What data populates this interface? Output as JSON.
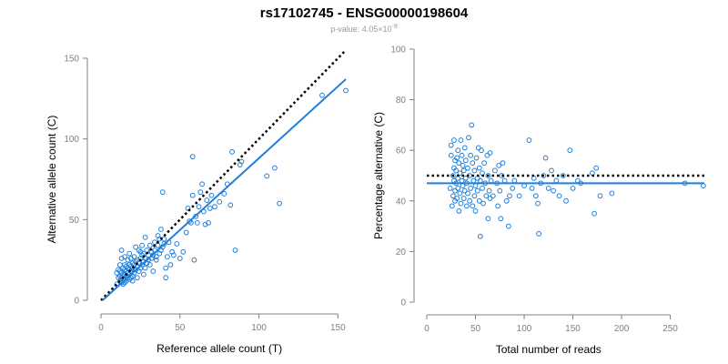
{
  "page": {
    "title": "rs17102745 - ENSG00000198604",
    "subtitle_prefix": "p-value: 4.05×10",
    "subtitle_exp": "-9"
  },
  "colors": {
    "points": "#1f7fdc",
    "fit": "#1f7fdc",
    "reference": "#000000",
    "axis": "#808080"
  },
  "chart_data": [
    {
      "type": "scatter",
      "title": "",
      "xlabel": "Reference allele count (T)",
      "ylabel": "Alternative allele count (C)",
      "xlim": [
        0,
        155
      ],
      "ylim": [
        0,
        150
      ],
      "xticks": [
        0,
        50,
        100,
        150
      ],
      "yticks": [
        0,
        50,
        100,
        150
      ],
      "grid": false,
      "reference_line": {
        "style": "dotted",
        "points": [
          [
            0,
            0
          ],
          [
            155,
            155
          ]
        ]
      },
      "fit_line": {
        "style": "solid",
        "points": [
          [
            1,
            0
          ],
          [
            155,
            137
          ]
        ]
      },
      "series": [
        {
          "points": [
            [
              10,
              10
            ],
            [
              10,
              17
            ],
            [
              11,
              14
            ],
            [
              11,
              19
            ],
            [
              12,
              12
            ],
            [
              12,
              15
            ],
            [
              12,
              18
            ],
            [
              12,
              22
            ],
            [
              13,
              11
            ],
            [
              13,
              14
            ],
            [
              13,
              17
            ],
            [
              13,
              26
            ],
            [
              13,
              31
            ],
            [
              14,
              10
            ],
            [
              14,
              13
            ],
            [
              14,
              16
            ],
            [
              14,
              20
            ],
            [
              15,
              11
            ],
            [
              15,
              13
            ],
            [
              15,
              16
            ],
            [
              15,
              19
            ],
            [
              15,
              22
            ],
            [
              15,
              27
            ],
            [
              16,
              12
            ],
            [
              16,
              15
            ],
            [
              16,
              18
            ],
            [
              16,
              21
            ],
            [
              17,
              14
            ],
            [
              17,
              17
            ],
            [
              17,
              20
            ],
            [
              17,
              25
            ],
            [
              18,
              13
            ],
            [
              18,
              16
            ],
            [
              18,
              19
            ],
            [
              18,
              22
            ],
            [
              18,
              29
            ],
            [
              19,
              14
            ],
            [
              19,
              18
            ],
            [
              19,
              21
            ],
            [
              19,
              26
            ],
            [
              20,
              12
            ],
            [
              20,
              15
            ],
            [
              20,
              20
            ],
            [
              20,
              23
            ],
            [
              21,
              17
            ],
            [
              21,
              22
            ],
            [
              21,
              27
            ],
            [
              22,
              19
            ],
            [
              22,
              24
            ],
            [
              22,
              33
            ],
            [
              23,
              14
            ],
            [
              23,
              21
            ],
            [
              23,
              25
            ],
            [
              24,
              18
            ],
            [
              24,
              23
            ],
            [
              24,
              31
            ],
            [
              25,
              20
            ],
            [
              25,
              26
            ],
            [
              25,
              30
            ],
            [
              26,
              22
            ],
            [
              26,
              28
            ],
            [
              26,
              34
            ],
            [
              27,
              16
            ],
            [
              27,
              24
            ],
            [
              27,
              29
            ],
            [
              28,
              20
            ],
            [
              28,
              26
            ],
            [
              28,
              39
            ],
            [
              29,
              23
            ],
            [
              29,
              31
            ],
            [
              30,
              25
            ],
            [
              30,
              28
            ],
            [
              31,
              22
            ],
            [
              31,
              34
            ],
            [
              32,
              26
            ],
            [
              32,
              30
            ],
            [
              33,
              18
            ],
            [
              33,
              28
            ],
            [
              34,
              31
            ],
            [
              34,
              36
            ],
            [
              35,
              27
            ],
            [
              35,
              25
            ],
            [
              36,
              34
            ],
            [
              36,
              40
            ],
            [
              37,
              29
            ],
            [
              37,
              38
            ],
            [
              38,
              31
            ],
            [
              38,
              44
            ],
            [
              39,
              33
            ],
            [
              39,
              67
            ],
            [
              40,
              35
            ],
            [
              40,
              38
            ],
            [
              41,
              14
            ],
            [
              41,
              20
            ],
            [
              42,
              27
            ],
            [
              43,
              36
            ],
            [
              44,
              22
            ],
            [
              45,
              30
            ],
            [
              46,
              28
            ],
            [
              48,
              35
            ],
            [
              50,
              26
            ],
            [
              52,
              30
            ],
            [
              54,
              42
            ],
            [
              55,
              57
            ],
            [
              56,
              49
            ],
            [
              57,
              48
            ],
            [
              58,
              65
            ],
            [
              58,
              89
            ],
            [
              59,
              25
            ],
            [
              60,
              52
            ],
            [
              61,
              48
            ],
            [
              62,
              58
            ],
            [
              63,
              67
            ],
            [
              64,
              72
            ],
            [
              65,
              55
            ],
            [
              66,
              47
            ],
            [
              67,
              62
            ],
            [
              68,
              48
            ],
            [
              69,
              57
            ],
            [
              70,
              65
            ],
            [
              72,
              58
            ],
            [
              75,
              61
            ],
            [
              78,
              66
            ],
            [
              80,
              72
            ],
            [
              82,
              59
            ],
            [
              83,
              92
            ],
            [
              85,
              31
            ],
            [
              88,
              84
            ],
            [
              89,
              86
            ],
            [
              105,
              77
            ],
            [
              110,
              82
            ],
            [
              113,
              60
            ],
            [
              140,
              127
            ],
            [
              155,
              130
            ]
          ]
        }
      ]
    },
    {
      "type": "scatter",
      "title": "",
      "xlabel": "Total number of reads",
      "ylabel": "Percentage alternative (C)",
      "xlim": [
        0,
        285
      ],
      "ylim": [
        0,
        100
      ],
      "xticks": [
        0,
        50,
        100,
        150,
        200,
        250
      ],
      "yticks": [
        0,
        20,
        40,
        60,
        80,
        100
      ],
      "grid": false,
      "reference_line": {
        "style": "dotted",
        "y": 50
      },
      "fit_line": {
        "style": "solid",
        "y": 47
      },
      "series": [
        {
          "points": [
            [
              24,
              45
            ],
            [
              25,
              58
            ],
            [
              25,
              62
            ],
            [
              26,
              38
            ],
            [
              27,
              42
            ],
            [
              27,
              50
            ],
            [
              28,
              48
            ],
            [
              28,
              53
            ],
            [
              28,
              64
            ],
            [
              29,
              40
            ],
            [
              29,
              44
            ],
            [
              29,
              56
            ],
            [
              30,
              47
            ],
            [
              30,
              52
            ],
            [
              31,
              41
            ],
            [
              31,
              57
            ],
            [
              32,
              45
            ],
            [
              32,
              49
            ],
            [
              32,
              60
            ],
            [
              33,
              36
            ],
            [
              33,
              55
            ],
            [
              34,
              43
            ],
            [
              34,
              51
            ],
            [
              35,
              39
            ],
            [
              35,
              64
            ],
            [
              36,
              48
            ],
            [
              36,
              58
            ],
            [
              37,
              46
            ],
            [
              37,
              54
            ],
            [
              38,
              41
            ],
            [
              38,
              52
            ],
            [
              39,
              44
            ],
            [
              39,
              61
            ],
            [
              40,
              49
            ],
            [
              40,
              56
            ],
            [
              41,
              38
            ],
            [
              41,
              47
            ],
            [
              42,
              43
            ],
            [
              42,
              53
            ],
            [
              43,
              65
            ],
            [
              44,
              40
            ],
            [
              44,
              50
            ],
            [
              45,
              45
            ],
            [
              45,
              58
            ],
            [
              46,
              70
            ],
            [
              47,
              38
            ],
            [
              47,
              55
            ],
            [
              48,
              48
            ],
            [
              49,
              42
            ],
            [
              49,
              52
            ],
            [
              50,
              36
            ],
            [
              50,
              46
            ],
            [
              51,
              57
            ],
            [
              52,
              44
            ],
            [
              52,
              49
            ],
            [
              53,
              61
            ],
            [
              54,
              40
            ],
            [
              54,
              53
            ],
            [
              55,
              26
            ],
            [
              55,
              48
            ],
            [
              56,
              60
            ],
            [
              57,
              45
            ],
            [
              57,
              51
            ],
            [
              58,
              39
            ],
            [
              59,
              55
            ],
            [
              60,
              47
            ],
            [
              61,
              42
            ],
            [
              62,
              58
            ],
            [
              63,
              33
            ],
            [
              63,
              50
            ],
            [
              64,
              44
            ],
            [
              65,
              41
            ],
            [
              65,
              59
            ],
            [
              66,
              48
            ],
            [
              68,
              42
            ],
            [
              70,
              52
            ],
            [
              72,
              47
            ],
            [
              73,
              38
            ],
            [
              74,
              54
            ],
            [
              75,
              44
            ],
            [
              76,
              33
            ],
            [
              77,
              50
            ],
            [
              78,
              55
            ],
            [
              80,
              48
            ],
            [
              82,
              40
            ],
            [
              84,
              30
            ],
            [
              85,
              42
            ],
            [
              88,
              45
            ],
            [
              90,
              48
            ],
            [
              95,
              42
            ],
            [
              100,
              46
            ],
            [
              105,
              64
            ],
            [
              108,
              45
            ],
            [
              110,
              49
            ],
            [
              112,
              42
            ],
            [
              114,
              39
            ],
            [
              115,
              27
            ],
            [
              117,
              47
            ],
            [
              120,
              50
            ],
            [
              122,
              57
            ],
            [
              125,
              45
            ],
            [
              128,
              52
            ],
            [
              130,
              44
            ],
            [
              133,
              48
            ],
            [
              136,
              42
            ],
            [
              140,
              50
            ],
            [
              143,
              40
            ],
            [
              147,
              60
            ],
            [
              150,
              45
            ],
            [
              155,
              48
            ],
            [
              158,
              47
            ],
            [
              170,
              51
            ],
            [
              172,
              35
            ],
            [
              174,
              53
            ],
            [
              178,
              42
            ],
            [
              190,
              43
            ],
            [
              265,
              47
            ],
            [
              284,
              46
            ]
          ]
        }
      ]
    }
  ]
}
